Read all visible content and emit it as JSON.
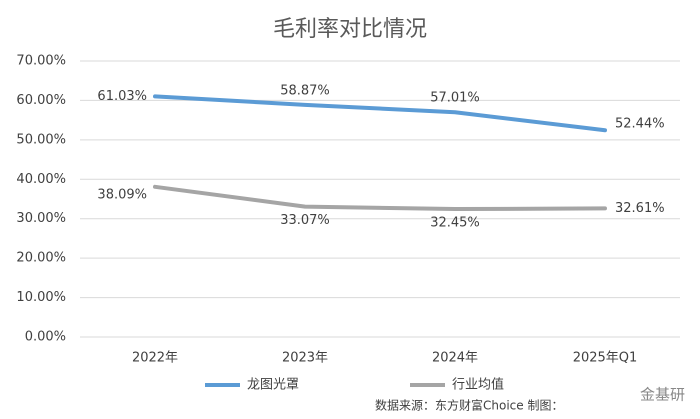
{
  "chart_data": {
    "type": "line",
    "title": "毛利率对比情况",
    "categories": [
      "2022年",
      "2023年",
      "2024年",
      "2025年Q1"
    ],
    "series": [
      {
        "name": "龙图光罩",
        "color": "#5b9bd5",
        "values": [
          61.03,
          58.87,
          57.01,
          52.44
        ],
        "value_labels": [
          "61.03%",
          "58.87%",
          "57.01%",
          "52.44%"
        ]
      },
      {
        "name": "行业均值",
        "color": "#a5a5a5",
        "values": [
          38.09,
          33.07,
          32.45,
          32.61
        ],
        "value_labels": [
          "38.09%",
          "33.07%",
          "32.45%",
          "32.61%"
        ]
      }
    ],
    "ylim": [
      0,
      70
    ],
    "yticks": [
      {
        "value": 0,
        "label": "0.00%"
      },
      {
        "value": 10,
        "label": "10.00%"
      },
      {
        "value": 20,
        "label": "20.00%"
      },
      {
        "value": 30,
        "label": "30.00%"
      },
      {
        "value": 40,
        "label": "40.00%"
      },
      {
        "value": 50,
        "label": "50.00%"
      },
      {
        "value": 60,
        "label": "60.00%"
      },
      {
        "value": 70,
        "label": "70.00%"
      }
    ],
    "grid": true,
    "legend": "bottom",
    "source": "数据来源：东方财富Choice  制图：",
    "watermark": "金基研"
  }
}
